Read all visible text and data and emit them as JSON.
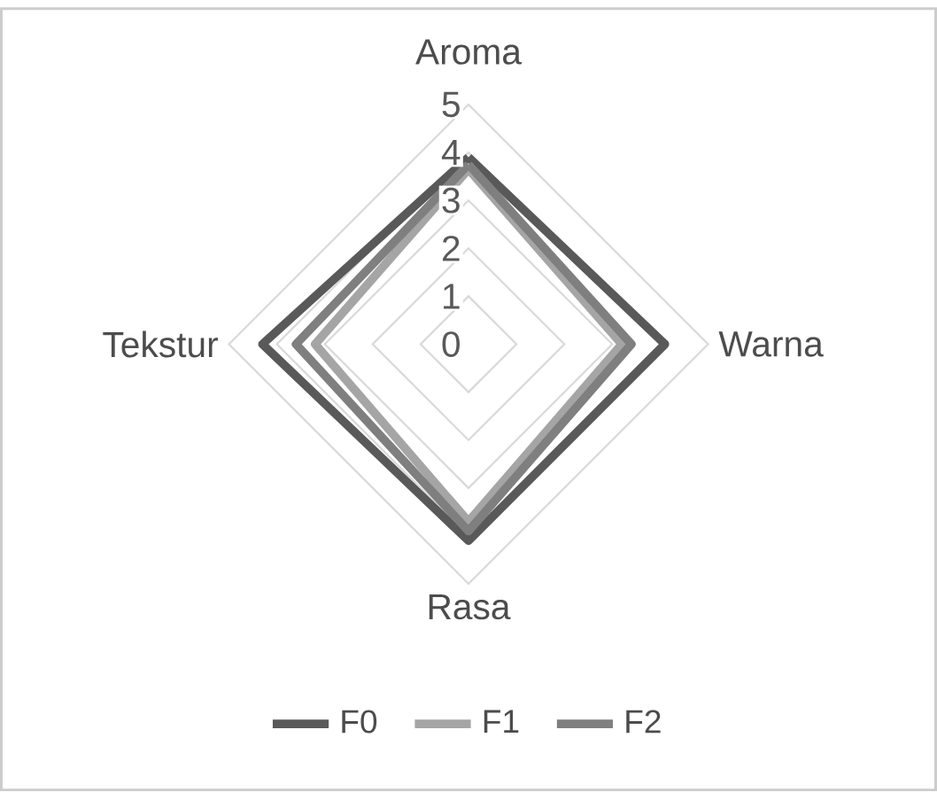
{
  "chart_data": {
    "type": "radar",
    "categories": [
      "Aroma",
      "Warna",
      "Rasa",
      "Tekstur"
    ],
    "ylim": [
      0,
      5
    ],
    "yticks": [
      0,
      1,
      2,
      3,
      4,
      5
    ],
    "grid": true,
    "legend": "bottom",
    "line_style": "solid",
    "series": [
      {
        "name": "F0",
        "color": "#595959",
        "values": [
          3.9,
          4.1,
          4.1,
          4.3
        ]
      },
      {
        "name": "F1",
        "color": "#a5a5a5",
        "values": [
          3.65,
          3.2,
          3.7,
          3.2
        ]
      },
      {
        "name": "F2",
        "color": "#7f7f7f",
        "values": [
          3.75,
          3.4,
          3.9,
          3.6
        ]
      }
    ]
  }
}
